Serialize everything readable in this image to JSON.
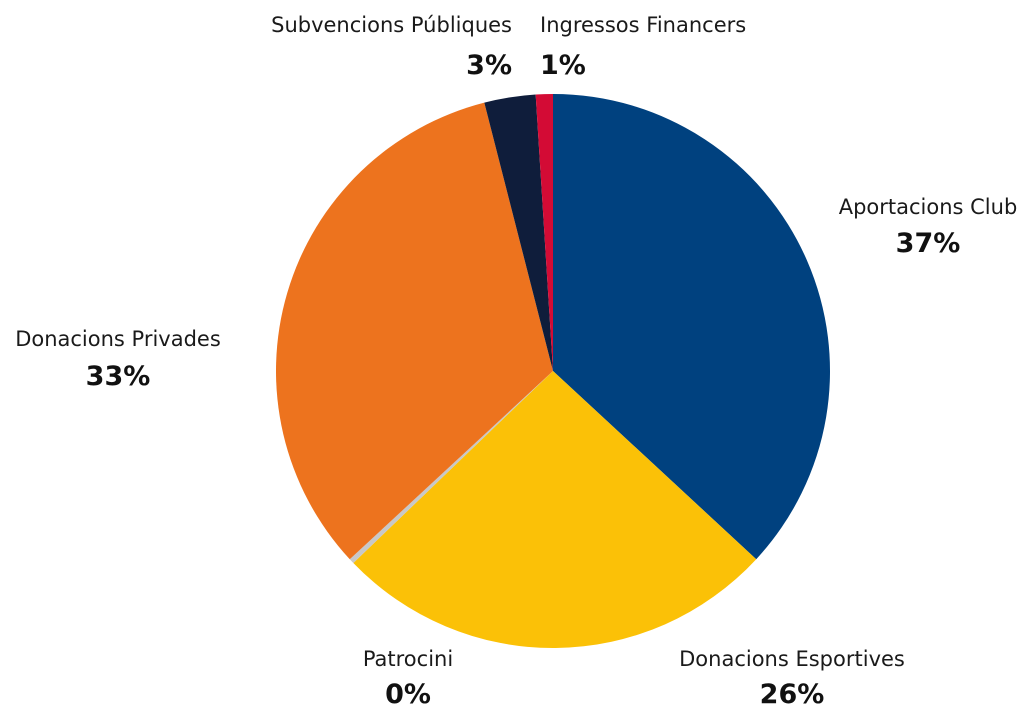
{
  "chart_data": {
    "type": "pie",
    "slices": [
      {
        "name": "Aportacions Club",
        "label": "37%",
        "value": 37,
        "color": "#00417f"
      },
      {
        "name": "Donacions Esportives",
        "label": "26%",
        "value": 26,
        "color": "#fbc107"
      },
      {
        "name": "Patrocini",
        "label": "0%",
        "value": 0.3,
        "color": "#c8c8c8"
      },
      {
        "name": "Donacions Privades",
        "label": "33%",
        "value": 33,
        "color": "#ed731e"
      },
      {
        "name": "Subvencions Públiques",
        "label": "3%",
        "value": 3,
        "color": "#0f1d3b"
      },
      {
        "name": "Ingressos Financers",
        "label": "1%",
        "value": 1,
        "color": "#d30b35"
      }
    ],
    "start_angle_deg": 0,
    "direction": "clockwise"
  }
}
